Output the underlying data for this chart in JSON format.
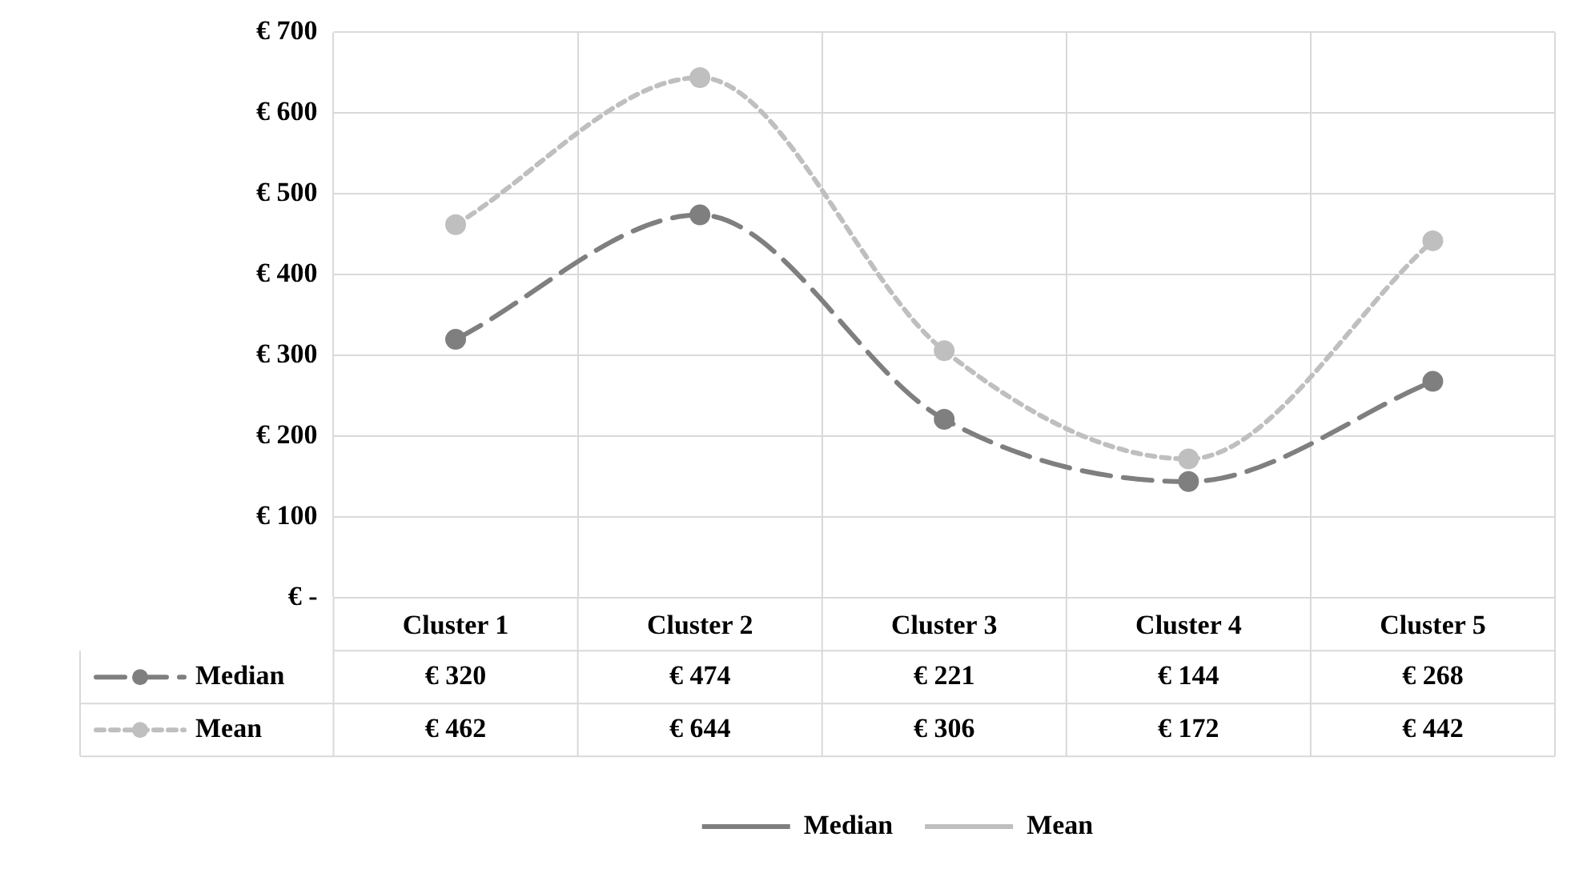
{
  "chart_data": {
    "type": "line",
    "categories": [
      "Cluster 1",
      "Cluster 2",
      "Cluster 3",
      "Cluster 4",
      "Cluster 5"
    ],
    "series": [
      {
        "name": "Median",
        "color": "#7f7f7f",
        "values": [
          320,
          474,
          221,
          144,
          268
        ],
        "line_style": "dashed",
        "value_labels": [
          "€ 320",
          "€ 474",
          "€ 221",
          "€ 144",
          "€ 268"
        ]
      },
      {
        "name": "Mean",
        "color": "#bfbfbf",
        "values": [
          462,
          644,
          306,
          172,
          442
        ],
        "line_style": "dotted",
        "value_labels": [
          "€ 462",
          "€ 644",
          "€ 306",
          "€ 172",
          "€ 442"
        ]
      }
    ],
    "ylim": [
      0,
      700
    ],
    "yticks": [
      {
        "value": 0,
        "label": "€ -"
      },
      {
        "value": 100,
        "label": "€ 100"
      },
      {
        "value": 200,
        "label": "€ 200"
      },
      {
        "value": 300,
        "label": "€ 300"
      },
      {
        "value": 400,
        "label": "€ 400"
      },
      {
        "value": 500,
        "label": "€ 500"
      },
      {
        "value": 600,
        "label": "€ 600"
      },
      {
        "value": 700,
        "label": "€ 700"
      }
    ],
    "grid": true,
    "legend": "bottom",
    "marker": "circle",
    "data_labels": true
  }
}
